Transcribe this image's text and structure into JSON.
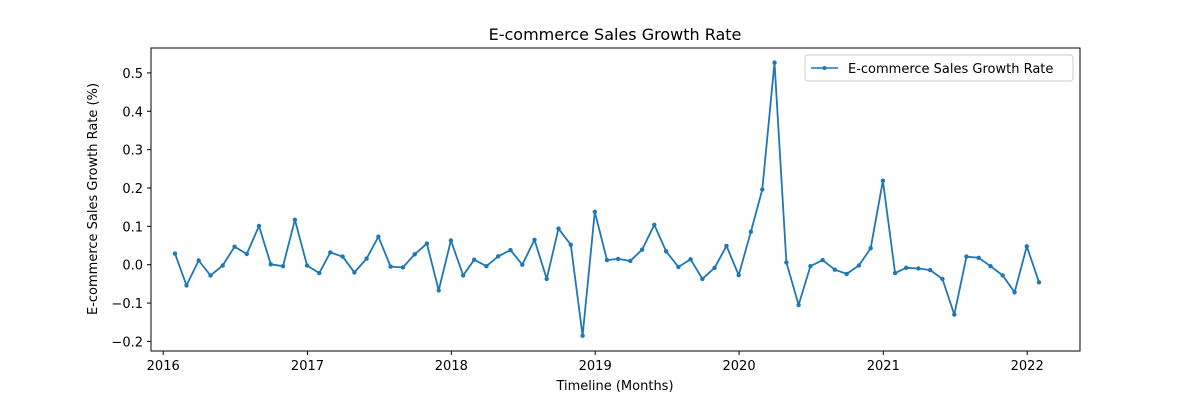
{
  "chart_data": {
    "type": "line",
    "title": "E-commerce Sales Growth Rate",
    "xlabel": "Timeline (Months)",
    "ylabel": "E-commerce Sales Growth Rate (%)",
    "xlim": [
      "2015-12-01",
      "2022-05-15"
    ],
    "ylim": [
      -0.225,
      0.565
    ],
    "x_ticks": [
      "2016",
      "2017",
      "2018",
      "2019",
      "2020",
      "2021",
      "2022"
    ],
    "y_ticks": [
      "−0.2",
      "−0.1",
      "0.0",
      "0.1",
      "0.2",
      "0.3",
      "0.4",
      "0.5"
    ],
    "grid": false,
    "legend_position": "top-right",
    "series_color": "#1f77b4",
    "series": [
      {
        "name": "E-commerce Sales Growth Rate",
        "x": [
          "2016-01-31",
          "2016-02-29",
          "2016-03-31",
          "2016-04-30",
          "2016-05-31",
          "2016-06-30",
          "2016-07-31",
          "2016-08-31",
          "2016-09-30",
          "2016-10-31",
          "2016-11-30",
          "2016-12-31",
          "2017-01-31",
          "2017-02-28",
          "2017-03-31",
          "2017-04-30",
          "2017-05-31",
          "2017-06-30",
          "2017-07-31",
          "2017-08-31",
          "2017-09-30",
          "2017-10-31",
          "2017-11-30",
          "2017-12-31",
          "2018-01-31",
          "2018-02-28",
          "2018-03-31",
          "2018-04-30",
          "2018-05-31",
          "2018-06-30",
          "2018-07-31",
          "2018-08-31",
          "2018-09-30",
          "2018-10-31",
          "2018-11-30",
          "2018-12-31",
          "2019-01-31",
          "2019-02-28",
          "2019-03-31",
          "2019-04-30",
          "2019-05-31",
          "2019-06-30",
          "2019-07-31",
          "2019-08-31",
          "2019-09-30",
          "2019-10-31",
          "2019-11-30",
          "2019-12-31",
          "2020-01-31",
          "2020-02-29",
          "2020-03-31",
          "2020-04-30",
          "2020-05-31",
          "2020-06-30",
          "2020-07-31",
          "2020-08-31",
          "2020-09-30",
          "2020-10-31",
          "2020-11-30",
          "2020-12-31",
          "2021-01-31",
          "2021-02-28",
          "2021-03-31",
          "2021-04-30",
          "2021-05-31",
          "2021-06-30",
          "2021-07-31",
          "2021-08-31",
          "2021-09-30",
          "2021-10-31",
          "2021-11-30",
          "2021-12-31",
          "2022-01-31"
        ],
        "y": [
          0.029,
          -0.054,
          0.011,
          -0.028,
          -0.002,
          0.047,
          0.028,
          0.101,
          0.001,
          -0.004,
          0.117,
          -0.002,
          -0.022,
          0.032,
          0.021,
          -0.02,
          0.016,
          0.073,
          -0.005,
          -0.007,
          0.027,
          0.055,
          -0.067,
          0.063,
          -0.028,
          0.013,
          -0.004,
          0.022,
          0.038,
          0.0,
          0.065,
          -0.037,
          0.094,
          0.052,
          -0.185,
          0.138,
          0.012,
          0.015,
          0.01,
          0.039,
          0.104,
          0.035,
          -0.006,
          0.014,
          -0.037,
          -0.008,
          0.049,
          -0.027,
          0.086,
          0.196,
          0.527,
          0.006,
          -0.105,
          -0.004,
          0.012,
          -0.013,
          -0.024,
          -0.002,
          0.043,
          0.219,
          -0.022,
          -0.008,
          -0.01,
          -0.014,
          -0.037,
          -0.13,
          0.021,
          0.018,
          -0.004,
          -0.028,
          -0.072,
          0.048,
          -0.046
        ]
      }
    ]
  }
}
